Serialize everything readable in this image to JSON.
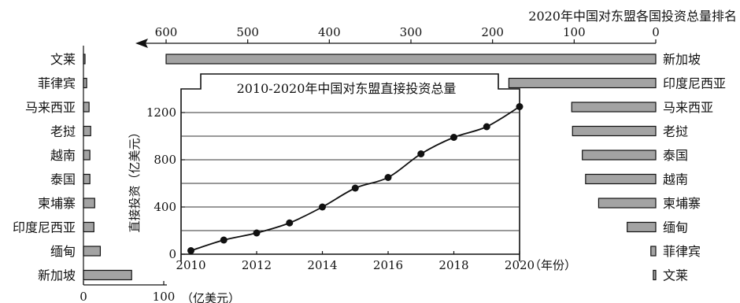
{
  "chart_data": [
    {
      "type": "bar",
      "orientation": "horizontal",
      "title": "2020年中国对东盟各国投资总量排名",
      "xlim": [
        0,
        600
      ],
      "x_reversed": true,
      "ticks": [
        0,
        100,
        200,
        300,
        400,
        500,
        600
      ],
      "grid": false,
      "categories": [
        "新加坡",
        "印度尼西亚",
        "马来西亚",
        "老挝",
        "泰国",
        "越南",
        "柬埔寨",
        "缅甸",
        "菲律宾",
        "文莱"
      ],
      "values": [
        600,
        180,
        103,
        102,
        90,
        86,
        70,
        35,
        6,
        3
      ]
    },
    {
      "type": "line",
      "title": "2010-2020年中国对东盟直接投资总量",
      "ylabel": "直接投资（亿美元）",
      "xunit": "（年份）",
      "x": [
        2010,
        2011,
        2012,
        2013,
        2014,
        2015,
        2016,
        2017,
        2018,
        2019,
        2020
      ],
      "y": [
        30,
        120,
        180,
        265,
        400,
        560,
        650,
        850,
        990,
        1080,
        1250
      ],
      "xlim": [
        2009.7,
        2020
      ],
      "ylim": [
        0,
        1400
      ],
      "xticks": [
        2010,
        2012,
        2014,
        2016,
        2018,
        2020
      ],
      "yticks": [
        0,
        400,
        800,
        1200
      ],
      "grid": true
    },
    {
      "type": "bar",
      "orientation": "horizontal",
      "xunit": "（亿美元）",
      "xlim": [
        0,
        100
      ],
      "ticks": [
        0,
        100
      ],
      "grid": false,
      "categories": [
        "文莱",
        "菲律宾",
        "马来西亚",
        "老挝",
        "越南",
        "泰国",
        "柬埔寨",
        "印度尼西亚",
        "缅甸",
        "新加坡"
      ],
      "values": [
        1,
        4,
        7,
        9,
        8,
        8,
        14,
        13,
        21,
        60
      ]
    }
  ]
}
